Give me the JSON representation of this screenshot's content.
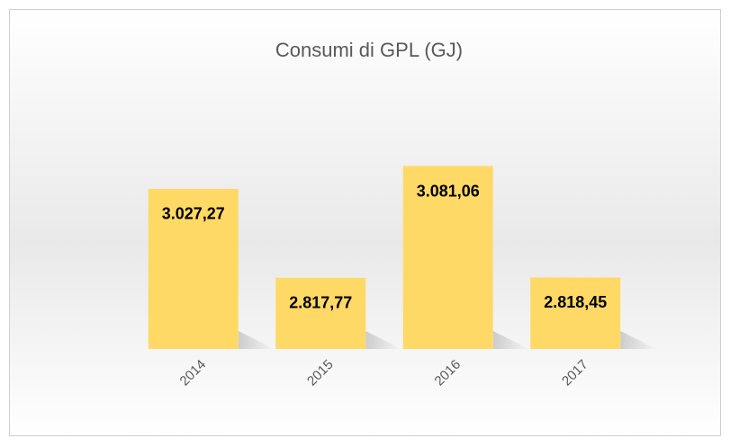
{
  "chart_data": {
    "type": "bar",
    "title": "Consumi di GPL (GJ)",
    "categories": [
      "2014",
      "2015",
      "2016",
      "2017"
    ],
    "values": [
      3027.27,
      2817.77,
      3081.06,
      2818.45
    ],
    "value_labels": [
      "3.027,27",
      "2.817,77",
      "3.081,06",
      "2.818,45"
    ],
    "color": "#ffd966",
    "ylim": [
      2650,
      3150
    ]
  }
}
